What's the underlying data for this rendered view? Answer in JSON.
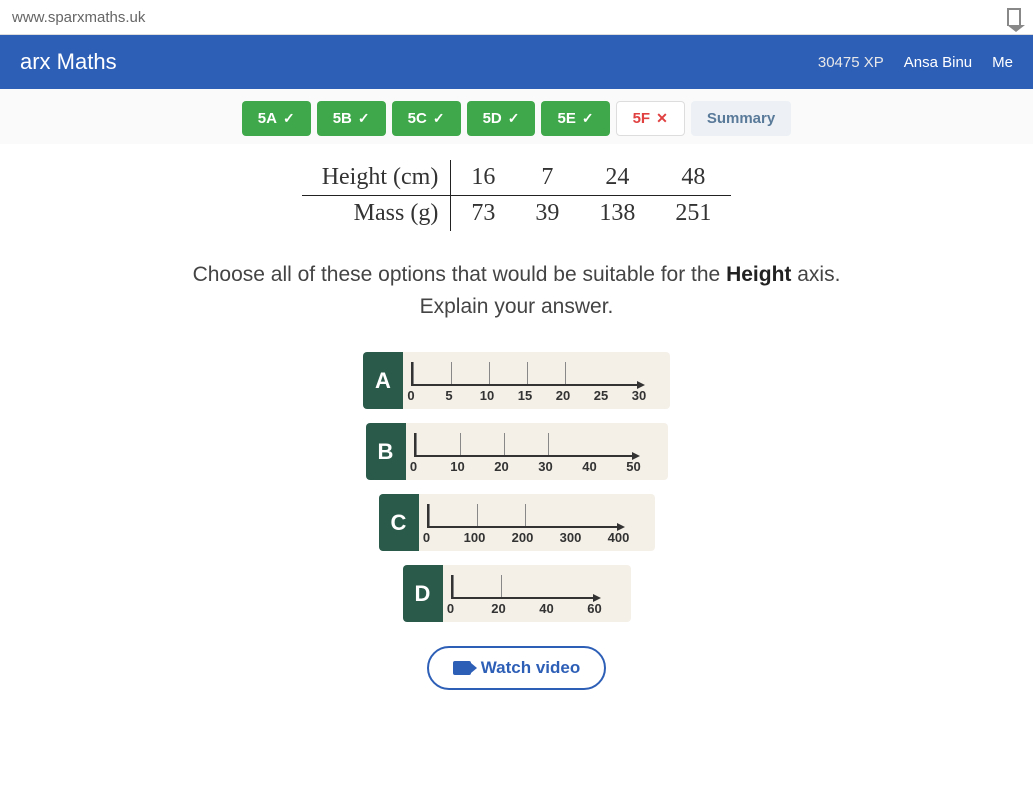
{
  "url": "www.sparxmaths.uk",
  "header": {
    "brand": "arx Maths",
    "xp": "30475 XP",
    "username": "Ansa Binu",
    "menu": "Me"
  },
  "tabs": [
    {
      "label": "5A",
      "status": "done"
    },
    {
      "label": "5B",
      "status": "done"
    },
    {
      "label": "5C",
      "status": "done"
    },
    {
      "label": "5D",
      "status": "done"
    },
    {
      "label": "5E",
      "status": "done"
    },
    {
      "label": "5F",
      "status": "wrong"
    },
    {
      "label": "Summary",
      "status": "summary"
    }
  ],
  "table": {
    "rows": [
      {
        "label": "Height (cm)",
        "vals": [
          "16",
          "7",
          "24",
          "48"
        ]
      },
      {
        "label": "Mass (g)",
        "vals": [
          "73",
          "39",
          "138",
          "251"
        ]
      }
    ]
  },
  "question": {
    "line1_pre": "Choose all of these options that would be suitable for the ",
    "line1_bold": "Height",
    "line1_post": " axis.",
    "line2": "Explain your answer."
  },
  "options": [
    {
      "letter": "A",
      "ticks": [
        "0",
        "5",
        "10",
        "15",
        "20",
        "25",
        "30"
      ],
      "tick_width": 38
    },
    {
      "letter": "B",
      "ticks": [
        "0",
        "10",
        "20",
        "30",
        "40",
        "50"
      ],
      "tick_width": 44
    },
    {
      "letter": "C",
      "ticks": [
        "0",
        "100",
        "200",
        "300",
        "400"
      ],
      "tick_width": 48
    },
    {
      "letter": "D",
      "ticks": [
        "0",
        "20",
        "40",
        "60"
      ],
      "tick_width": 48
    }
  ],
  "watch_video": "Watch video",
  "colors": {
    "header_bg": "#2e5fb7",
    "tab_done_bg": "#3fa84a",
    "tab_wrong_color": "#e04040",
    "option_label_bg": "#2a5a4a",
    "axis_bg": "#f4f0e8"
  }
}
